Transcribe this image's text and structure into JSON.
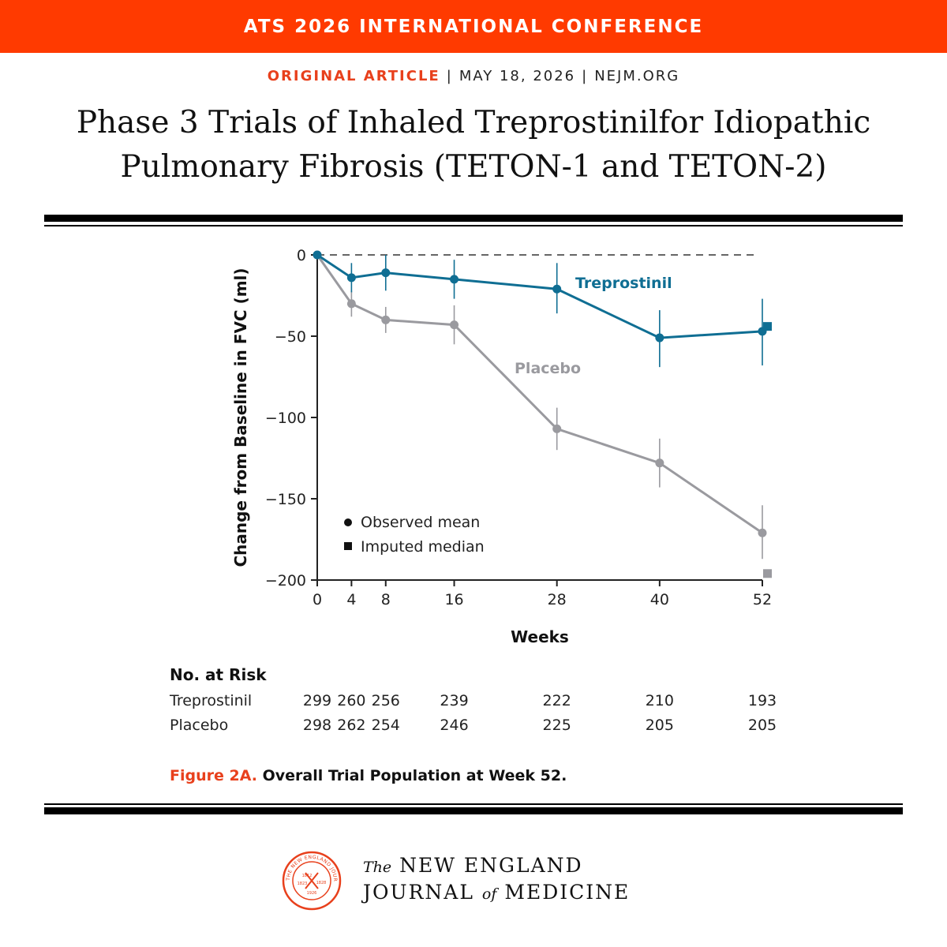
{
  "colors": {
    "banner": "#ff3a00",
    "accent": "#e8401c",
    "treprostinil": "#0f6e93",
    "placebo": "#9a9a9f",
    "logo": "#e8401c"
  },
  "banner": {
    "text": "ATS 2026 INTERNATIONAL CONFERENCE"
  },
  "meta": {
    "article_type": "ORIGINAL ARTICLE",
    "date": "MAY 18, 2026",
    "site": "NEJM.ORG"
  },
  "title": {
    "line1": "Phase 3 Trials of Inhaled Treprostinilfor Idiopathic",
    "line2": "Pulmonary Fibrosis (TETON-1 and TETON-2)"
  },
  "chart_data": {
    "type": "line",
    "ylabel": "Change from Baseline in FVC (ml)",
    "xlabel": "Weeks",
    "xlim": [
      0,
      52
    ],
    "ylim": [
      -200,
      0
    ],
    "x_ticks": [
      0,
      4,
      8,
      16,
      28,
      40,
      52
    ],
    "y_ticks": [
      0,
      -50,
      -100,
      -150,
      -200
    ],
    "y_tick_labels": [
      "0",
      "−50",
      "−100",
      "−150",
      "−200"
    ],
    "reference_line": {
      "y": 0,
      "style": "dashed"
    },
    "series": [
      {
        "name": "Treprostinil",
        "x": [
          0,
          4,
          8,
          16,
          28,
          40,
          52
        ],
        "y": [
          0,
          -14,
          -11,
          -15,
          -21,
          -51,
          -47
        ],
        "err_low": [
          0,
          -23,
          -22,
          -27,
          -36,
          -69,
          -68
        ],
        "err_high": [
          0,
          -5,
          0,
          -3,
          -5,
          -34,
          -27
        ],
        "imputed_median": {
          "x": 52,
          "y": -44
        }
      },
      {
        "name": "Placebo",
        "x": [
          0,
          4,
          8,
          16,
          28,
          40,
          52
        ],
        "y": [
          0,
          -30,
          -40,
          -43,
          -107,
          -128,
          -171
        ],
        "err_low": [
          0,
          -38,
          -48,
          -55,
          -120,
          -143,
          -187
        ],
        "err_high": [
          0,
          -22,
          -32,
          -31,
          -94,
          -113,
          -154
        ],
        "imputed_median": {
          "x": 52,
          "y": -196
        }
      }
    ],
    "legend": {
      "position": "bottom-left",
      "observed": "Observed mean",
      "imputed": "Imputed median"
    },
    "grid": false
  },
  "risk": {
    "title": "No. at Risk",
    "weeks": [
      0,
      4,
      8,
      16,
      28,
      40,
      52
    ],
    "rows": [
      {
        "name": "Treprostinil",
        "values": [
          "299",
          "260",
          "256",
          "239",
          "222",
          "210",
          "193"
        ]
      },
      {
        "name": "Placebo",
        "values": [
          "298",
          "262",
          "254",
          "246",
          "225",
          "205",
          "205"
        ]
      }
    ]
  },
  "caption": {
    "label": "Figure 2A.",
    "text": " Overall Trial Population at Week 52."
  },
  "masthead": {
    "the": "The",
    "new_england": "NEW ENGLAND",
    "journal": "JOURNAL",
    "of": "of",
    "medicine": "MEDICINE",
    "seal_text": "THE NEW ENGLAND JOURNAL OF MEDICINE",
    "seal_year_left": "1812",
    "seal_year_right": "1828",
    "seal_year_bottom": "1926",
    "seal_year_inner": "1823"
  }
}
